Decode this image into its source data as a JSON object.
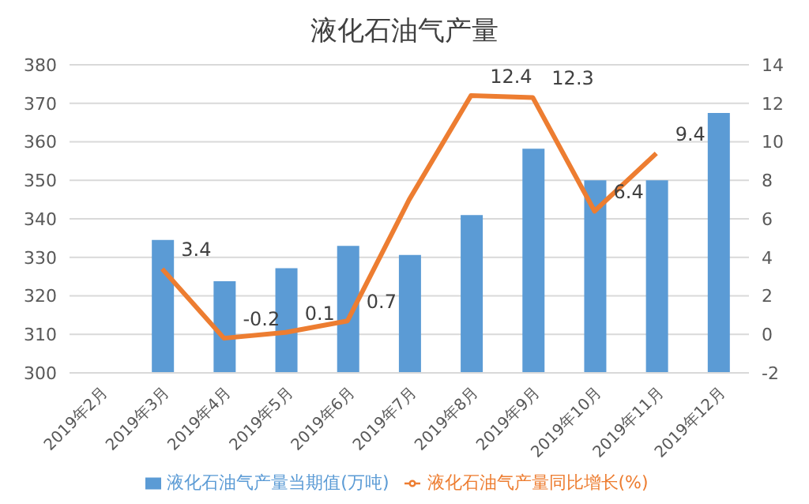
{
  "chart_data": {
    "type": "bar",
    "title": "液化石油气产量",
    "categories": [
      "2019年2月",
      "2019年3月",
      "2019年4月",
      "2019年5月",
      "2019年6月",
      "2019年7月",
      "2019年8月",
      "2019年9月",
      "2019年10月",
      "2019年11月",
      "2019年12月"
    ],
    "series": [
      {
        "name": "液化石油气产量当期值(万吨)",
        "color": "#5b9bd5",
        "values": [
          null,
          334.5,
          323.8,
          327.2,
          333,
          330.6,
          341,
          358.2,
          350,
          350,
          367.5
        ]
      },
      {
        "name": "液化石油气产量同比增长(%)",
        "type": "line",
        "axis": "y2",
        "color": "#ed7d31",
        "values": [
          null,
          3.4,
          -0.2,
          0.1,
          0.7,
          7,
          12.4,
          12.3,
          6.4,
          9.4,
          null
        ],
        "value_labels": [
          null,
          "3.4",
          "-0.2",
          "0.1",
          "0.7",
          null,
          "12.4",
          "12.3",
          "6.4",
          "9.4",
          null
        ]
      }
    ],
    "ylim": [
      300,
      380
    ],
    "yticks": [
      300,
      310,
      320,
      330,
      340,
      350,
      360,
      370,
      380
    ],
    "y2lim": [
      -2,
      14
    ],
    "y2ticks": [
      -2,
      0,
      2,
      4,
      6,
      8,
      10,
      12,
      14
    ],
    "grid": "y",
    "legend": "bottom",
    "marker": "none",
    "line_style": "solid"
  }
}
